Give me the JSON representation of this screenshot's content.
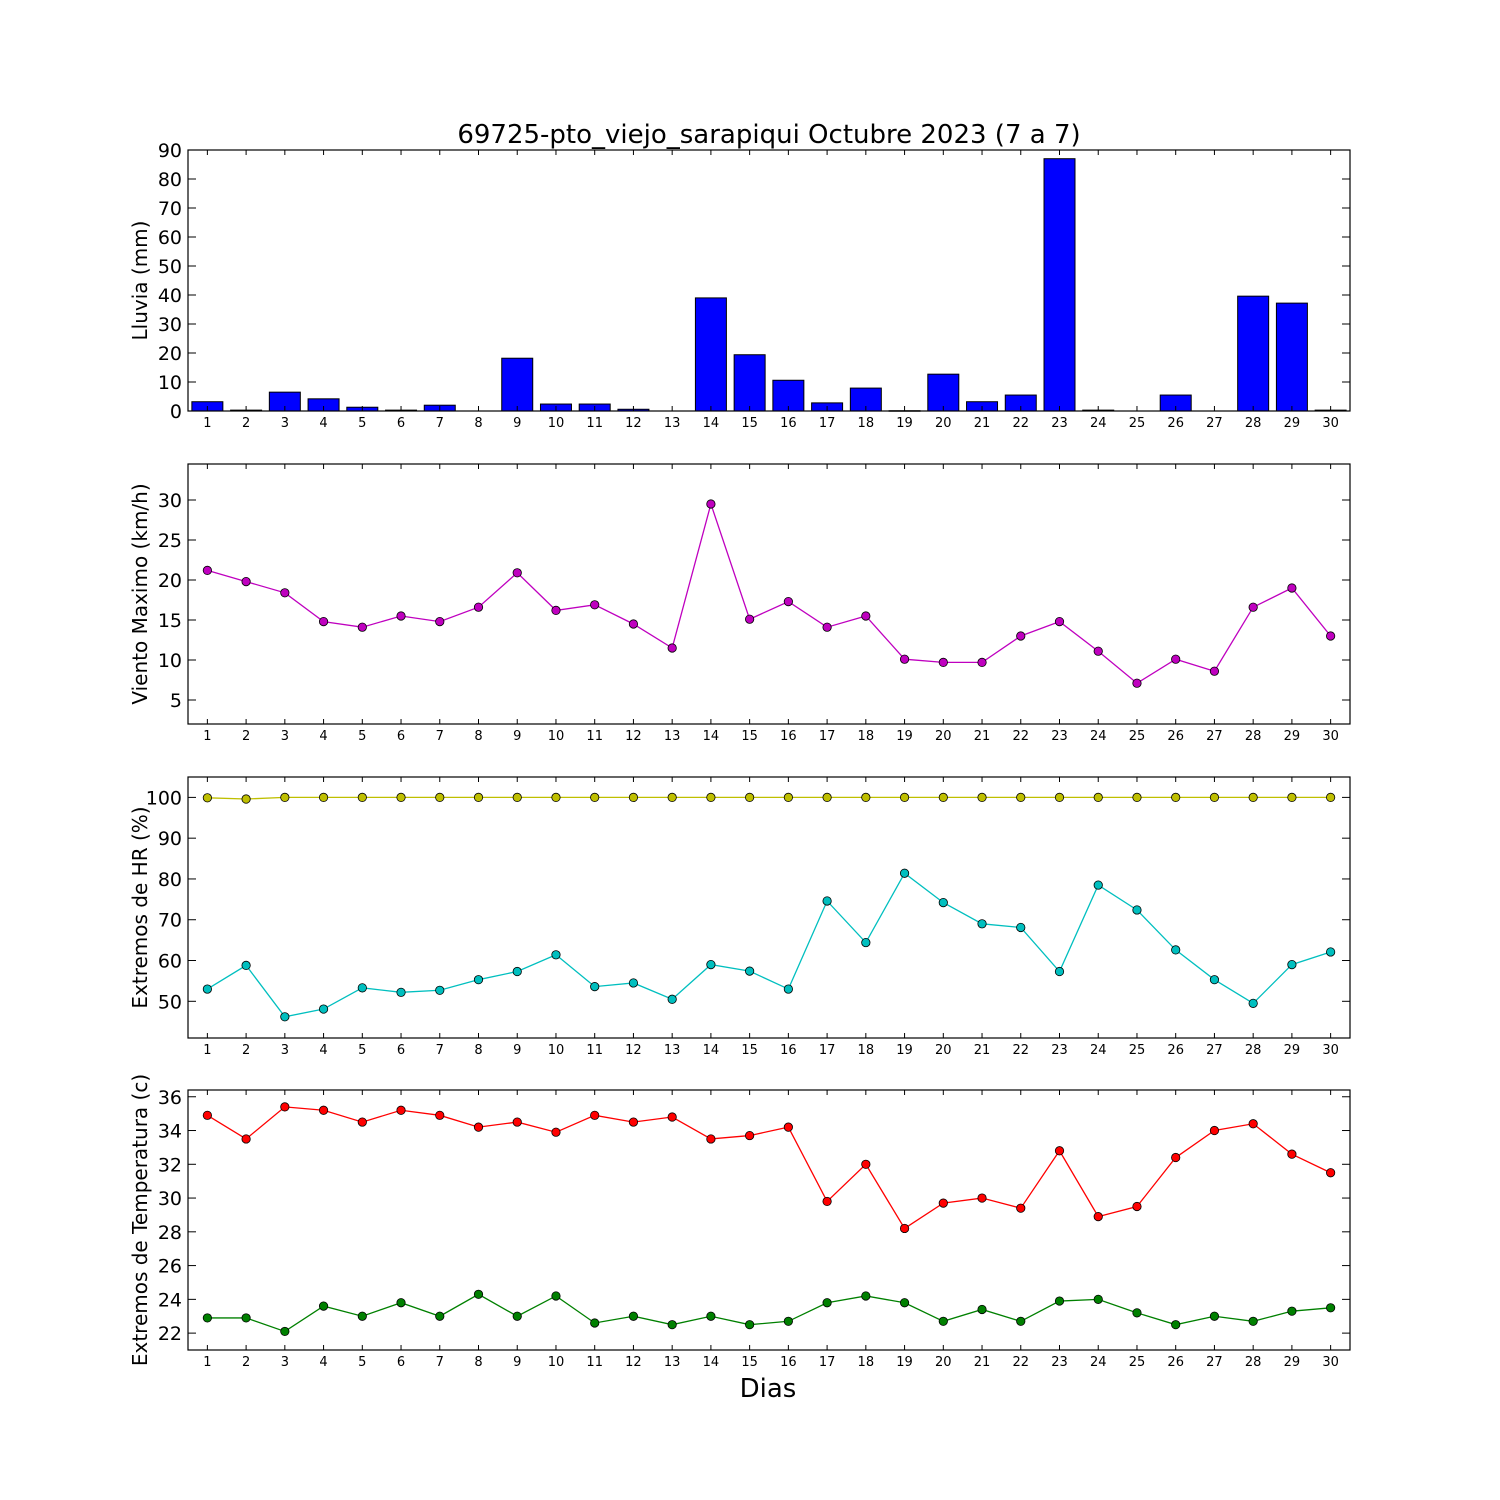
{
  "title": "69725-pto_viejo_sarapiqui Octubre 2023  (7 a 7)",
  "xlabel": "Dias",
  "chart_data": [
    {
      "type": "bar",
      "ylabel": "Lluvia (mm)",
      "ylim": [
        0,
        90
      ],
      "yticks": [
        0,
        10,
        20,
        30,
        40,
        50,
        60,
        70,
        80,
        90
      ],
      "x": [
        1,
        2,
        3,
        4,
        5,
        6,
        7,
        8,
        9,
        10,
        11,
        12,
        13,
        14,
        15,
        16,
        17,
        18,
        19,
        20,
        21,
        22,
        23,
        24,
        25,
        26,
        27,
        28,
        29,
        30
      ],
      "series": [
        {
          "color": "#0000ff",
          "values": [
            3.2,
            0.3,
            6.5,
            4.2,
            1.3,
            0.3,
            2.0,
            0,
            18.2,
            2.4,
            2.4,
            0.6,
            0,
            39.0,
            19.4,
            10.6,
            2.8,
            7.9,
            0.1,
            12.7,
            3.2,
            5.5,
            87.0,
            0.3,
            0,
            5.5,
            0,
            39.6,
            37.2,
            0.3
          ]
        }
      ]
    },
    {
      "type": "line",
      "ylabel": "Viento Maximo (km/h)",
      "ylim": [
        2.0,
        34.5
      ],
      "yticks": [
        5,
        10,
        15,
        20,
        25,
        30
      ],
      "x": [
        1,
        2,
        3,
        4,
        5,
        6,
        7,
        8,
        9,
        10,
        11,
        12,
        13,
        14,
        15,
        16,
        17,
        18,
        19,
        20,
        21,
        22,
        23,
        24,
        25,
        26,
        27,
        28,
        29,
        30
      ],
      "series": [
        {
          "color": "#bf00bf",
          "values": [
            21.2,
            19.8,
            18.4,
            14.8,
            14.1,
            15.5,
            14.8,
            16.6,
            20.9,
            16.2,
            16.9,
            14.5,
            11.5,
            29.5,
            15.1,
            17.3,
            14.1,
            15.5,
            10.1,
            9.7,
            9.7,
            13.0,
            14.8,
            11.1,
            7.1,
            10.1,
            8.6,
            16.6,
            19.0,
            13.0
          ]
        }
      ]
    },
    {
      "type": "line",
      "ylabel": "Extremos de HR (%)",
      "ylim": [
        41,
        105
      ],
      "yticks": [
        50,
        60,
        70,
        80,
        90,
        100
      ],
      "x": [
        1,
        2,
        3,
        4,
        5,
        6,
        7,
        8,
        9,
        10,
        11,
        12,
        13,
        14,
        15,
        16,
        17,
        18,
        19,
        20,
        21,
        22,
        23,
        24,
        25,
        26,
        27,
        28,
        29,
        30
      ],
      "series": [
        {
          "color": "#bfbf00",
          "values": [
            99.9,
            99.6,
            100,
            100,
            100,
            100,
            100,
            100,
            100,
            100,
            100,
            100,
            100,
            100,
            100,
            100,
            100,
            100,
            100,
            100,
            100,
            100,
            100,
            100,
            100,
            100,
            100,
            100,
            100,
            100
          ]
        },
        {
          "color": "#00bfbf",
          "values": [
            53,
            58.8,
            46.2,
            48.1,
            53.3,
            52.2,
            52.7,
            55.3,
            57.3,
            61.4,
            53.6,
            54.5,
            50.5,
            59,
            57.4,
            53,
            74.6,
            64.4,
            81.4,
            74.2,
            69,
            68.1,
            57.3,
            78.5,
            72.4,
            62.6,
            55.3,
            49.5,
            59,
            62.1
          ]
        }
      ]
    },
    {
      "type": "line",
      "ylabel": "Extremos de Temperatura (c)",
      "ylim": [
        21.0,
        36.4
      ],
      "yticks": [
        22,
        24,
        26,
        28,
        30,
        32,
        34,
        36
      ],
      "x": [
        1,
        2,
        3,
        4,
        5,
        6,
        7,
        8,
        9,
        10,
        11,
        12,
        13,
        14,
        15,
        16,
        17,
        18,
        19,
        20,
        21,
        22,
        23,
        24,
        25,
        26,
        27,
        28,
        29,
        30
      ],
      "series": [
        {
          "color": "#ff0000",
          "values": [
            34.9,
            33.5,
            35.4,
            35.2,
            34.5,
            35.2,
            34.9,
            34.2,
            34.5,
            33.9,
            34.9,
            34.5,
            34.8,
            33.5,
            33.7,
            34.2,
            29.8,
            32.0,
            28.2,
            29.7,
            30.0,
            29.4,
            32.8,
            28.9,
            29.5,
            32.4,
            34.0,
            34.4,
            32.6,
            31.5
          ]
        },
        {
          "color": "#008000",
          "values": [
            22.9,
            22.9,
            22.1,
            23.6,
            23.0,
            23.8,
            23.0,
            24.3,
            23.0,
            24.2,
            22.6,
            23.0,
            22.5,
            23.0,
            22.5,
            22.7,
            23.8,
            24.2,
            23.8,
            22.7,
            23.4,
            22.7,
            23.9,
            24.0,
            23.2,
            22.5,
            23.0,
            22.7,
            23.3,
            23.5
          ]
        }
      ]
    }
  ]
}
